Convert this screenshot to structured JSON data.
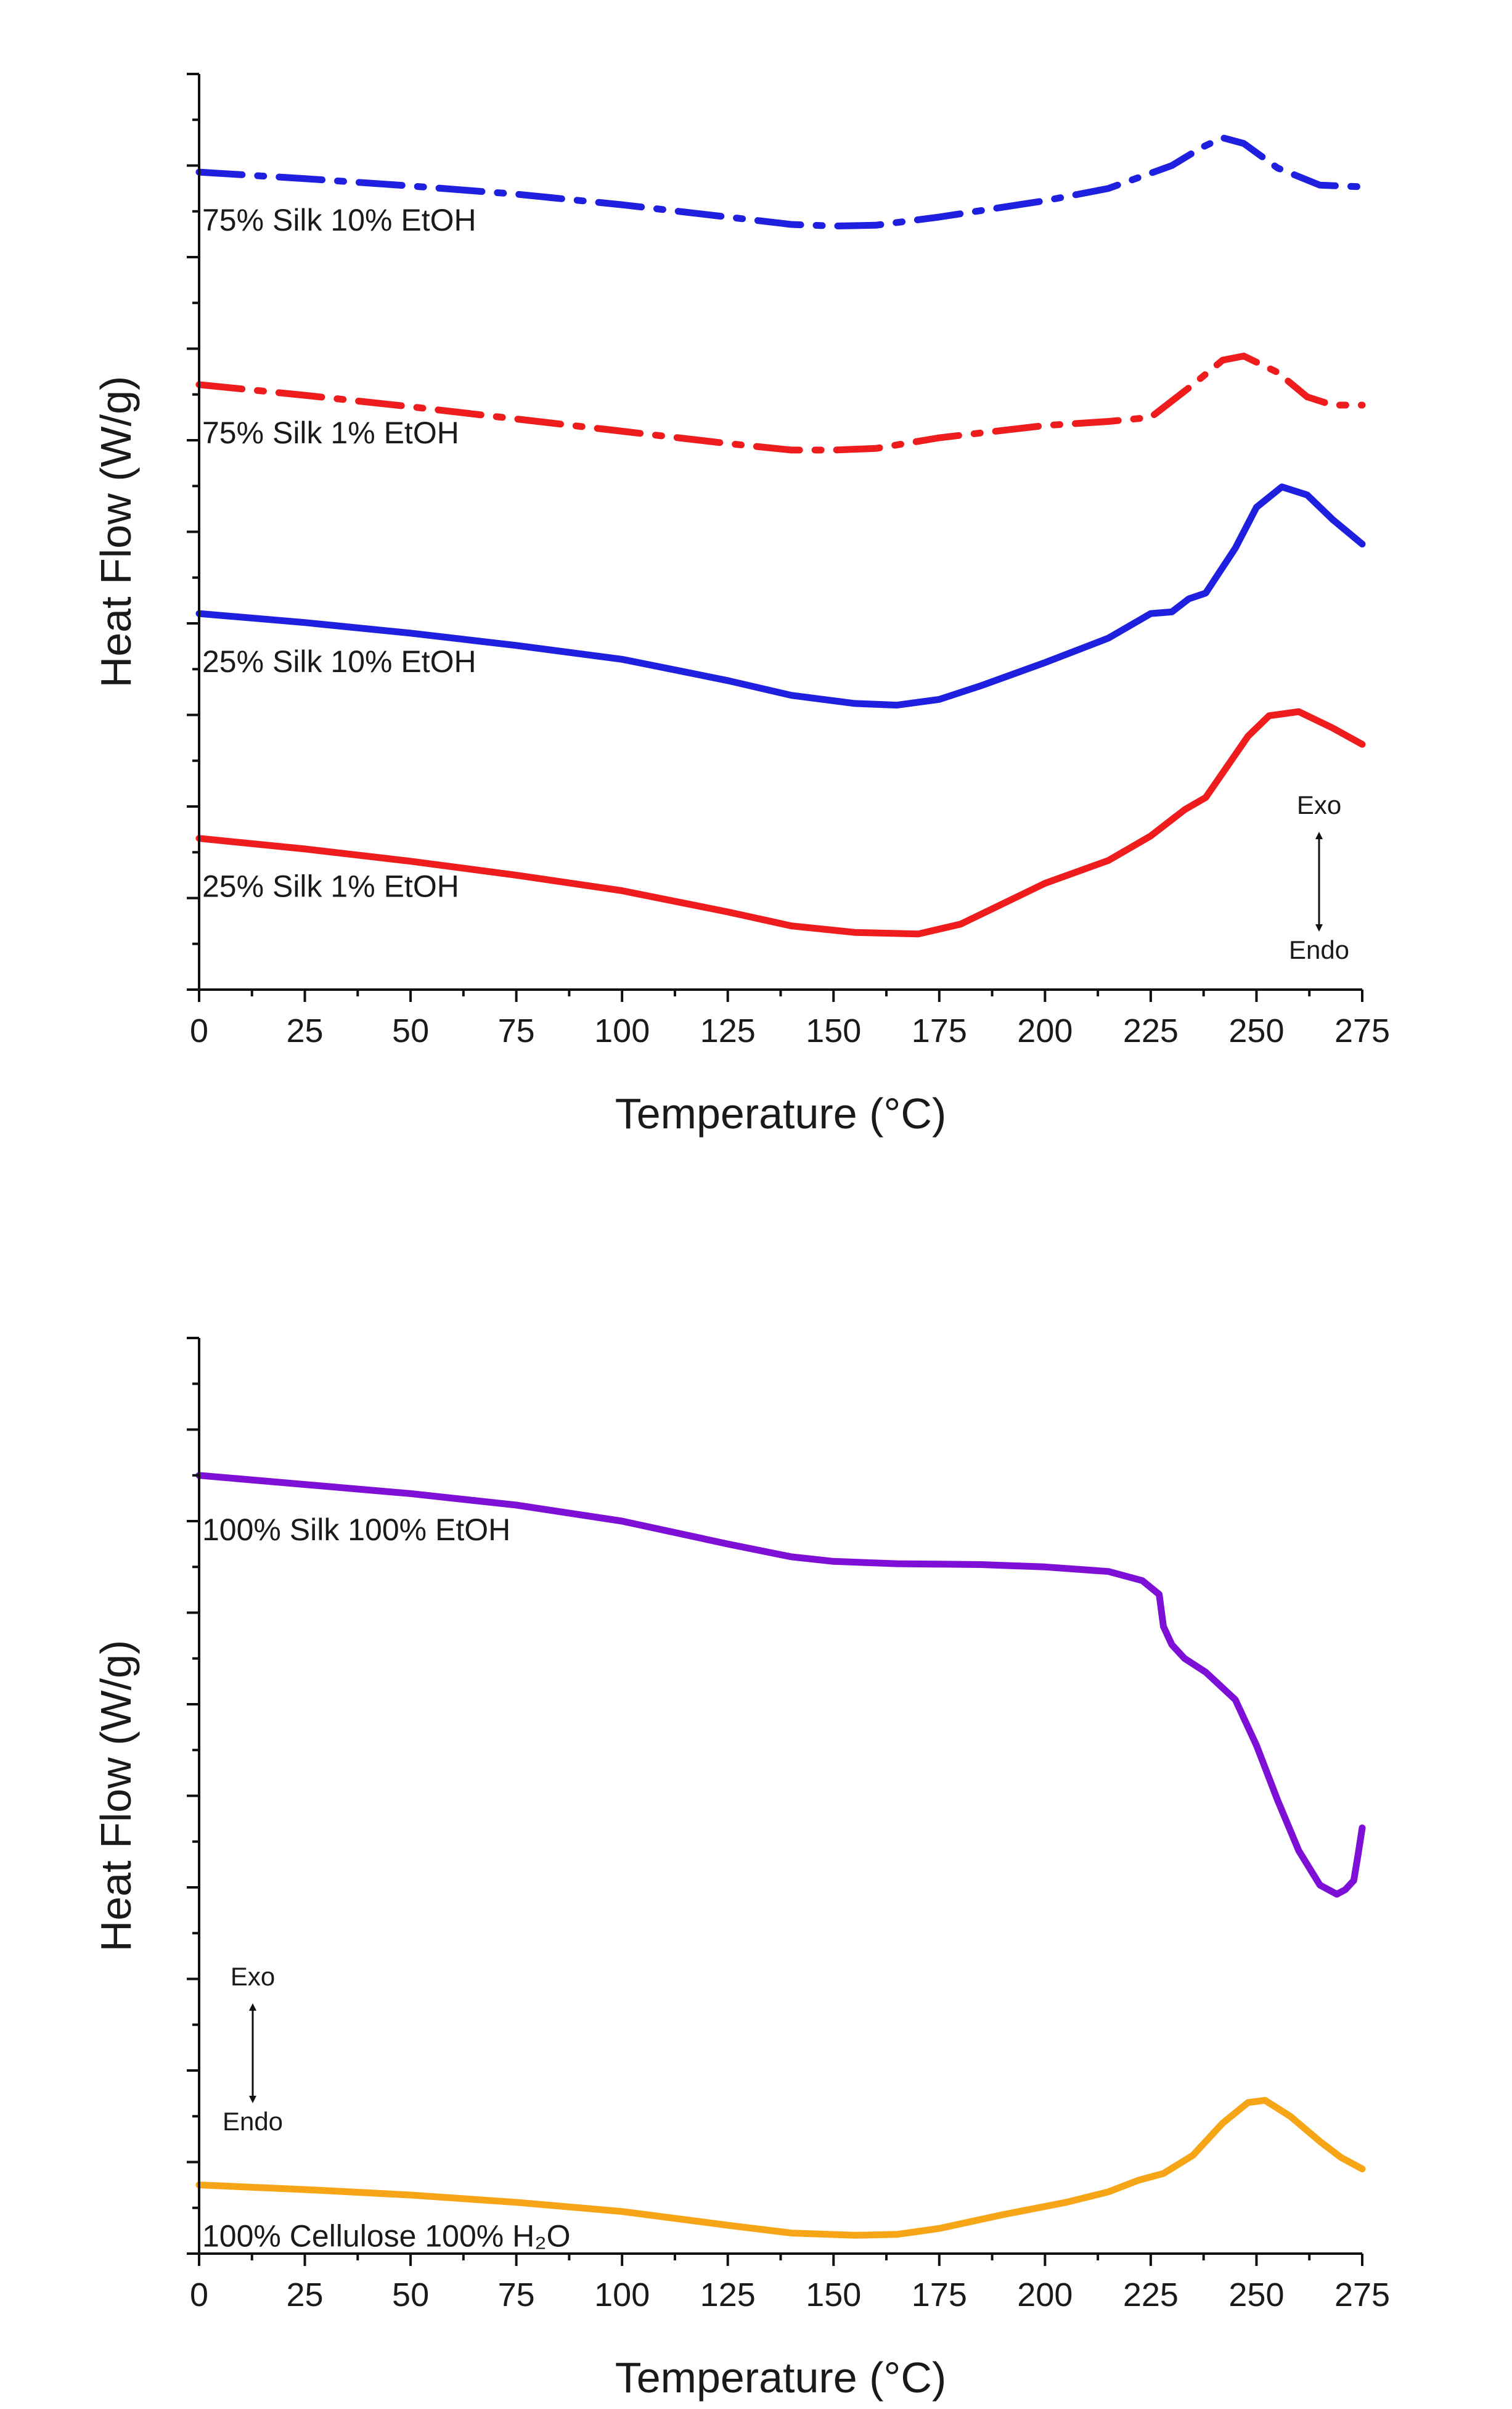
{
  "chart_data": [
    {
      "type": "line",
      "xlabel": "Temperature (°C)",
      "ylabel": "Heat Flow (W/g)",
      "xlim": [
        0,
        275
      ],
      "xticks": [
        0,
        25,
        50,
        75,
        100,
        125,
        150,
        175,
        200,
        225,
        250,
        275
      ],
      "y_tick_labels_shown": false,
      "annotation": {
        "up": "Exo",
        "down": "Endo",
        "placement": "bottom-right"
      },
      "series": [
        {
          "name": "75% Silk 10% EtOH",
          "color": "#1f1fe0",
          "style": "dashdot",
          "points": [
            [
              0,
              10.0
            ],
            [
              25,
              9.92
            ],
            [
              50,
              9.83
            ],
            [
              75,
              9.73
            ],
            [
              100,
              9.6
            ],
            [
              125,
              9.45
            ],
            [
              140,
              9.36
            ],
            [
              150,
              9.34
            ],
            [
              160,
              9.35
            ],
            [
              175,
              9.45
            ],
            [
              200,
              9.65
            ],
            [
              215,
              9.8
            ],
            [
              230,
              10.08
            ],
            [
              237,
              10.3
            ],
            [
              242,
              10.42
            ],
            [
              247,
              10.35
            ],
            [
              255,
              10.05
            ],
            [
              265,
              9.84
            ],
            [
              275,
              9.82
            ]
          ]
        },
        {
          "name": "75% Silk 1% EtOH",
          "color": "#ee1c1c",
          "style": "dashdot",
          "points": [
            [
              0,
              7.4
            ],
            [
              25,
              7.27
            ],
            [
              50,
              7.13
            ],
            [
              75,
              6.98
            ],
            [
              100,
              6.83
            ],
            [
              125,
              6.68
            ],
            [
              140,
              6.6
            ],
            [
              150,
              6.6
            ],
            [
              160,
              6.62
            ],
            [
              175,
              6.75
            ],
            [
              200,
              6.9
            ],
            [
              215,
              6.95
            ],
            [
              225,
              7.0
            ],
            [
              235,
              7.4
            ],
            [
              242,
              7.7
            ],
            [
              247,
              7.75
            ],
            [
              255,
              7.55
            ],
            [
              262,
              7.25
            ],
            [
              268,
              7.15
            ],
            [
              275,
              7.15
            ]
          ]
        },
        {
          "name": "25% Silk 10% EtOH",
          "color": "#1f1fe0",
          "style": "solid",
          "points": [
            [
              0,
              4.6
            ],
            [
              25,
              4.49
            ],
            [
              50,
              4.36
            ],
            [
              75,
              4.21
            ],
            [
              100,
              4.04
            ],
            [
              125,
              3.78
            ],
            [
              140,
              3.6
            ],
            [
              155,
              3.5
            ],
            [
              165,
              3.48
            ],
            [
              175,
              3.55
            ],
            [
              185,
              3.72
            ],
            [
              200,
              4.0
            ],
            [
              215,
              4.3
            ],
            [
              225,
              4.6
            ],
            [
              230,
              4.62
            ],
            [
              234,
              4.78
            ],
            [
              238,
              4.85
            ],
            [
              245,
              5.4
            ],
            [
              250,
              5.9
            ],
            [
              256,
              6.15
            ],
            [
              262,
              6.05
            ],
            [
              268,
              5.75
            ],
            [
              275,
              5.45
            ]
          ]
        },
        {
          "name": "25% Silk 1% EtOH",
          "color": "#ee1c1c",
          "style": "solid",
          "points": [
            [
              0,
              1.85
            ],
            [
              25,
              1.72
            ],
            [
              50,
              1.57
            ],
            [
              75,
              1.4
            ],
            [
              100,
              1.21
            ],
            [
              125,
              0.95
            ],
            [
              140,
              0.78
            ],
            [
              155,
              0.7
            ],
            [
              170,
              0.68
            ],
            [
              180,
              0.8
            ],
            [
              190,
              1.05
            ],
            [
              200,
              1.3
            ],
            [
              215,
              1.58
            ],
            [
              225,
              1.88
            ],
            [
              233,
              2.2
            ],
            [
              238,
              2.35
            ],
            [
              242,
              2.65
            ],
            [
              248,
              3.1
            ],
            [
              253,
              3.35
            ],
            [
              260,
              3.4
            ],
            [
              268,
              3.2
            ],
            [
              275,
              3.0
            ]
          ]
        }
      ]
    },
    {
      "type": "line",
      "xlabel": "Temperature (°C)",
      "ylabel": "Heat Flow (W/g)",
      "xlim": [
        0,
        275
      ],
      "xticks": [
        0,
        25,
        50,
        75,
        100,
        125,
        150,
        175,
        200,
        225,
        250,
        275
      ],
      "y_tick_labels_shown": false,
      "annotation": {
        "up": "Exo",
        "down": "Endo",
        "placement": "bottom-left"
      },
      "series": [
        {
          "name": "100% Silk 100% EtOH",
          "color": "#7d0fd6",
          "style": "solid",
          "points": [
            [
              0,
              16.5
            ],
            [
              25,
              16.3
            ],
            [
              50,
              16.1
            ],
            [
              75,
              15.85
            ],
            [
              100,
              15.5
            ],
            [
              125,
              15.0
            ],
            [
              140,
              14.72
            ],
            [
              150,
              14.62
            ],
            [
              165,
              14.57
            ],
            [
              185,
              14.55
            ],
            [
              200,
              14.5
            ],
            [
              215,
              14.4
            ],
            [
              223,
              14.2
            ],
            [
              227,
              13.9
            ],
            [
              228,
              13.2
            ],
            [
              230,
              12.8
            ],
            [
              233,
              12.5
            ],
            [
              238,
              12.2
            ],
            [
              245,
              11.6
            ],
            [
              250,
              10.6
            ],
            [
              255,
              9.4
            ],
            [
              260,
              8.3
            ],
            [
              265,
              7.55
            ],
            [
              269,
              7.35
            ],
            [
              271,
              7.45
            ],
            [
              273,
              7.65
            ],
            [
              274,
              8.2
            ],
            [
              275,
              8.8
            ]
          ]
        },
        {
          "name": "100% Cellulose 100% H2O",
          "display_name": "100% Cellulose 100% H₂O",
          "color": "#f5a516",
          "style": "solid",
          "points": [
            [
              0,
              1.0
            ],
            [
              25,
              0.9
            ],
            [
              50,
              0.78
            ],
            [
              75,
              0.62
            ],
            [
              100,
              0.42
            ],
            [
              125,
              0.12
            ],
            [
              140,
              -0.05
            ],
            [
              155,
              -0.1
            ],
            [
              165,
              -0.08
            ],
            [
              175,
              0.05
            ],
            [
              190,
              0.35
            ],
            [
              205,
              0.62
            ],
            [
              215,
              0.85
            ],
            [
              222,
              1.1
            ],
            [
              228,
              1.25
            ],
            [
              235,
              1.65
            ],
            [
              242,
              2.35
            ],
            [
              248,
              2.8
            ],
            [
              252,
              2.85
            ],
            [
              258,
              2.5
            ],
            [
              265,
              1.95
            ],
            [
              270,
              1.6
            ],
            [
              275,
              1.35
            ]
          ]
        }
      ]
    }
  ]
}
